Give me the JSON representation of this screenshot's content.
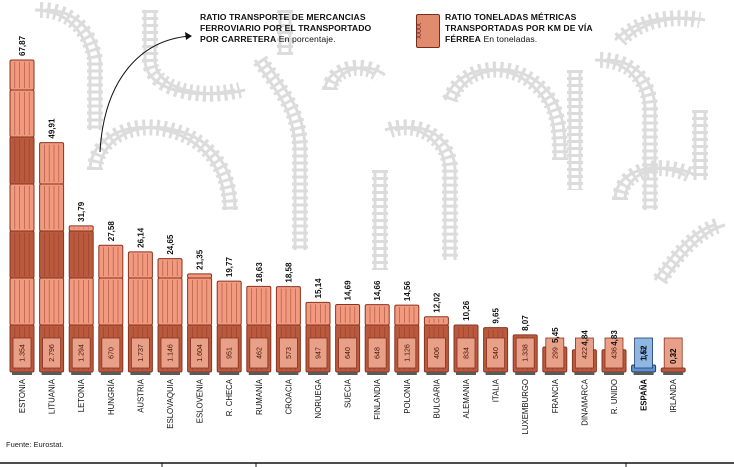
{
  "chart_data": {
    "type": "bar",
    "categories": [
      "ESTONIA",
      "LITUANIA",
      "LETONIA",
      "HUNGRÍA",
      "AUSTRIA",
      "ESLOVAQUIA",
      "ESLOVENIA",
      "R. CHECA",
      "RUMANÍA",
      "CROACIA",
      "NORUEGA",
      "SUECIA",
      "FINLANDIA",
      "POLONIA",
      "BULGARIA",
      "ALEMANIA",
      "ITALIA",
      "LUXEMBURGO",
      "FRANCIA",
      "DINAMARCA",
      "R. UNIDO",
      "ESPAÑA",
      "IRLANDA"
    ],
    "series": [
      {
        "name": "Ratio transporte de mercancías ferroviario por el transportado por carretera (%)",
        "values": [
          67.87,
          49.91,
          31.79,
          27.58,
          26.14,
          24.65,
          21.35,
          19.77,
          18.63,
          18.58,
          15.14,
          14.69,
          14.66,
          14.56,
          12.02,
          10.26,
          9.65,
          8.07,
          5.45,
          4.84,
          4.83,
          1.52,
          0.32
        ],
        "labels": [
          "67,87",
          "49,91",
          "31,79",
          "27,58",
          "26,14",
          "24,65",
          "21,35",
          "19,77",
          "18,63",
          "18,58",
          "15,14",
          "14,69",
          "14,66",
          "14,56",
          "12,02",
          "10,26",
          "9,65",
          "8,07",
          "5,45",
          "4,84",
          "4,83",
          "1,52",
          "0,32"
        ]
      },
      {
        "name": "Ratio toneladas métricas transportadas por km de vía férrea (toneladas)",
        "values": [
          1354,
          2796,
          1294,
          670,
          1737,
          1146,
          1604,
          951,
          462,
          573,
          947,
          640,
          648,
          1126,
          406,
          834,
          540,
          1338,
          299,
          422,
          436,
          143,
          22
        ],
        "labels": [
          "1.354",
          "2.796",
          "1.294",
          "670",
          "1.737",
          "1.146",
          "1.604",
          "951",
          "462",
          "573",
          "947",
          "640",
          "648",
          "1.126",
          "406",
          "834",
          "540",
          "1.338",
          "299",
          "422",
          "436",
          "143",
          "22"
        ]
      }
    ],
    "highlight": "ESPAÑA",
    "ylim": [
      0,
      67.87
    ],
    "colors": {
      "wagon": "#b95a3e",
      "wagon_light": "#f19a80",
      "wagon_dark": "#8a3420",
      "highlight": "#5f93cc",
      "rails": "#dcdcdc"
    }
  },
  "legend": {
    "ratio_title": "RATIO TRANSPORTE DE MERCANCIAS FERROVIARIO POR EL TRANSPORTADO POR CARRETERA",
    "ratio_unit": "En porcentaje.",
    "tons_title": "RATIO TONELADAS MÉTRICAS TRANSPORTADAS POR KM DE VÍA FÉRREA",
    "tons_unit": "En toneladas.",
    "box_label": "XXXX"
  },
  "source": "Fuente: Eurostat."
}
